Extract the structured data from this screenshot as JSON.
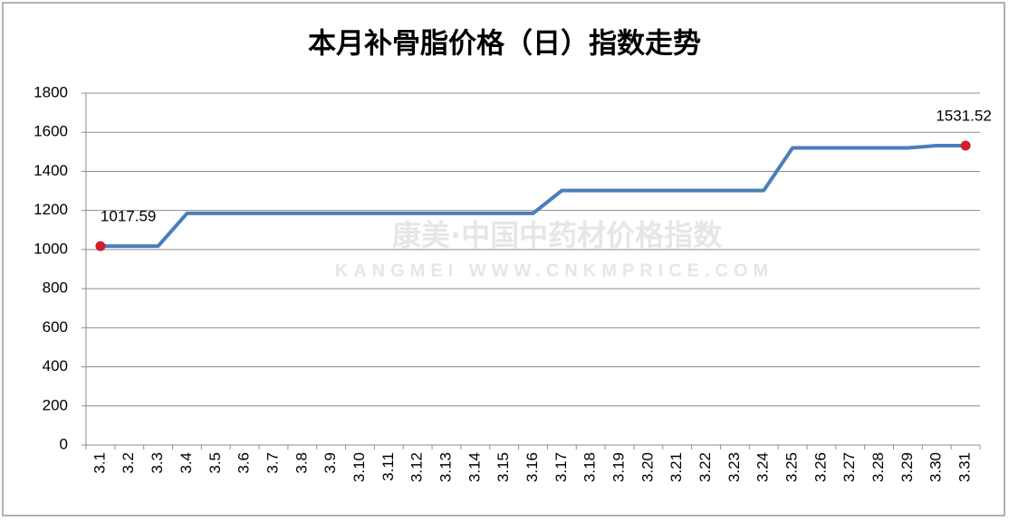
{
  "chart_data": {
    "type": "line",
    "title": "本月补骨脂价格（日）指数走势",
    "watermark": [
      "康美·中国中药材价格指数",
      "KANGMEI WWW.CNKMPRICE.COM"
    ],
    "categories": [
      "3.1",
      "3.2",
      "3.3",
      "3.4",
      "3.5",
      "3.6",
      "3.7",
      "3.8",
      "3.9",
      "3.10",
      "3.11",
      "3.12",
      "3.13",
      "3.14",
      "3.15",
      "3.16",
      "3.17",
      "3.18",
      "3.19",
      "3.20",
      "3.21",
      "3.22",
      "3.23",
      "3.24",
      "3.25",
      "3.26",
      "3.27",
      "3.28",
      "3.29",
      "3.30",
      "3.31"
    ],
    "series": [
      {
        "name": "补骨脂",
        "color": "#4a7ebb",
        "values": [
          1017.59,
          1017.59,
          1017.59,
          1185,
          1185,
          1185,
          1185,
          1185,
          1185,
          1185,
          1185,
          1185,
          1185,
          1185,
          1185,
          1185,
          1302,
          1302,
          1302,
          1302,
          1302,
          1302,
          1302,
          1302,
          1520,
          1520,
          1520,
          1520,
          1520,
          1531.52,
          1531.52
        ],
        "value_labels": [
          "1017.59",
          null,
          null,
          null,
          null,
          null,
          null,
          null,
          null,
          null,
          null,
          null,
          null,
          null,
          null,
          null,
          null,
          null,
          null,
          null,
          null,
          null,
          null,
          null,
          null,
          null,
          null,
          null,
          null,
          null,
          "1531.52"
        ],
        "marker_color": "#d0202e"
      }
    ],
    "ylim": [
      0,
      1800
    ],
    "yticks": [
      0,
      200,
      400,
      600,
      800,
      1000,
      1200,
      1400,
      1600,
      1800
    ],
    "grid": true
  }
}
